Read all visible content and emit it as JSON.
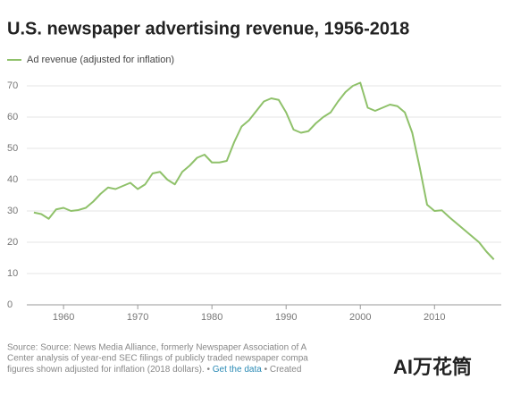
{
  "chart_data": {
    "type": "line",
    "title": "U.S. newspaper advertising revenue, 1956-2018",
    "x": [
      1956,
      1957,
      1958,
      1959,
      1960,
      1961,
      1962,
      1963,
      1964,
      1965,
      1966,
      1967,
      1968,
      1969,
      1970,
      1971,
      1972,
      1973,
      1974,
      1975,
      1976,
      1977,
      1978,
      1979,
      1980,
      1981,
      1982,
      1983,
      1984,
      1985,
      1986,
      1987,
      1988,
      1989,
      1990,
      1991,
      1992,
      1993,
      1994,
      1995,
      1996,
      1997,
      1998,
      1999,
      2000,
      2001,
      2002,
      2003,
      2004,
      2005,
      2006,
      2007,
      2008,
      2009,
      2010,
      2011,
      2012,
      2013,
      2014,
      2015,
      2016,
      2017,
      2018
    ],
    "series": [
      {
        "name": "Ad revenue (adjusted for inflation)",
        "color": "#8fc16a",
        "values": [
          29.5,
          29,
          27.5,
          30.5,
          31,
          30,
          30.3,
          31,
          33,
          35.5,
          37.5,
          37,
          38,
          39,
          37,
          38.5,
          42,
          42.5,
          40,
          38.5,
          42.5,
          44.5,
          47,
          48,
          45.5,
          45.5,
          46,
          52,
          57,
          59,
          62,
          65,
          66,
          65.5,
          61.5,
          56,
          55,
          55.5,
          58,
          60,
          61.5,
          65,
          68,
          70,
          71,
          63,
          62,
          63,
          64,
          63.5,
          61.5,
          55,
          44,
          32,
          30,
          30.2,
          28,
          26,
          24,
          22,
          20,
          17,
          14.5
        ]
      }
    ],
    "xlim": [
      1953,
      2019
    ],
    "xticks": [
      1960,
      1970,
      1980,
      1990,
      2000,
      2010
    ],
    "ylim": [
      0,
      70
    ],
    "yticks": [
      0,
      10,
      20,
      30,
      40,
      50,
      60,
      70
    ],
    "grid": true,
    "source_lines": [
      "Source: Source: News Media Alliance, formerly Newspaper Association of A",
      "Center analysis of year-end SEC filings of publicly traded newspaper compa",
      "figures shown adjusted for inflation (2018 dollars). • "
    ],
    "get_data": "Get the data",
    "created": " • Created",
    "watermark": "AI万花筒"
  }
}
